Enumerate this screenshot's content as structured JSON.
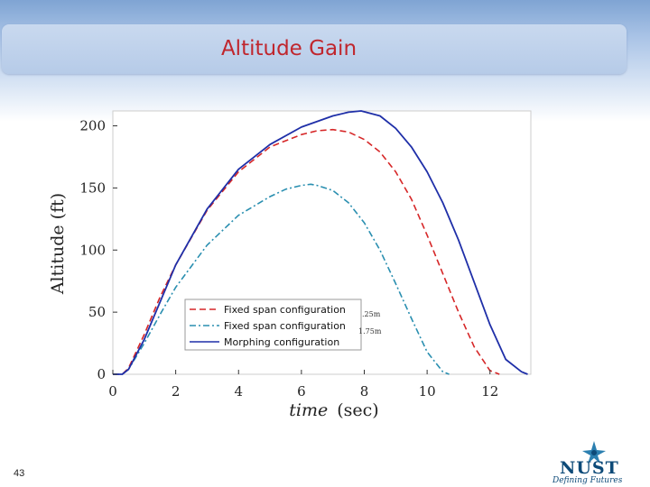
{
  "slide": {
    "title": "Altitude Gain",
    "page_number": "43",
    "logo_text": "NUST",
    "logo_tagline": "Defining Futures"
  },
  "chart_data": {
    "type": "line",
    "xlabel_italic": "time",
    "xlabel_unit": "(sec)",
    "ylabel": "Altitude (ft)",
    "xlim": [
      0,
      13.3
    ],
    "ylim": [
      0,
      212
    ],
    "xticks": [
      0,
      2,
      4,
      6,
      8,
      10,
      12
    ],
    "yticks": [
      0,
      50,
      100,
      150,
      200
    ],
    "grid": false,
    "legend_position": "bottom-center",
    "legend_overflow": [
      ".25m",
      "1.75m"
    ],
    "series": [
      {
        "name": "Fixed span configuration",
        "color": "#d62728",
        "style": "dashed",
        "x": [
          0,
          0.3,
          0.5,
          1,
          1.5,
          2,
          3,
          4,
          5,
          6,
          6.5,
          7,
          7.5,
          8,
          8.5,
          9,
          9.5,
          10,
          10.5,
          11,
          11.5,
          12,
          12.3
        ],
        "y": [
          0,
          0,
          5,
          32,
          62,
          88,
          132,
          163,
          183,
          193,
          196,
          197,
          195,
          189,
          179,
          163,
          141,
          112,
          81,
          50,
          22,
          3,
          0
        ]
      },
      {
        "name": "Fixed span configuration",
        "color": "#2a8fb0",
        "style": "dashdot",
        "x": [
          0,
          0.3,
          0.5,
          1,
          1.5,
          2,
          3,
          4,
          5,
          5.5,
          6,
          6.3,
          6.5,
          7,
          7.5,
          8,
          8.5,
          9,
          9.5,
          10,
          10.5,
          10.7
        ],
        "y": [
          0,
          0,
          4,
          25,
          48,
          70,
          104,
          128,
          143,
          149,
          152,
          153,
          152,
          148,
          138,
          122,
          100,
          73,
          45,
          18,
          2,
          0
        ]
      },
      {
        "name": "Morphing configuration",
        "color": "#1f2fa8",
        "style": "solid",
        "x": [
          0,
          0.3,
          0.5,
          1,
          1.5,
          2,
          3,
          4,
          5,
          6,
          7,
          7.5,
          7.9,
          8.5,
          9,
          9.5,
          10,
          10.5,
          11,
          11.5,
          12,
          12.5,
          13,
          13.2
        ],
        "y": [
          0,
          0,
          4,
          28,
          58,
          88,
          133,
          165,
          185,
          199,
          208,
          211,
          212,
          208,
          198,
          183,
          163,
          138,
          108,
          74,
          40,
          12,
          2,
          0
        ]
      }
    ]
  }
}
